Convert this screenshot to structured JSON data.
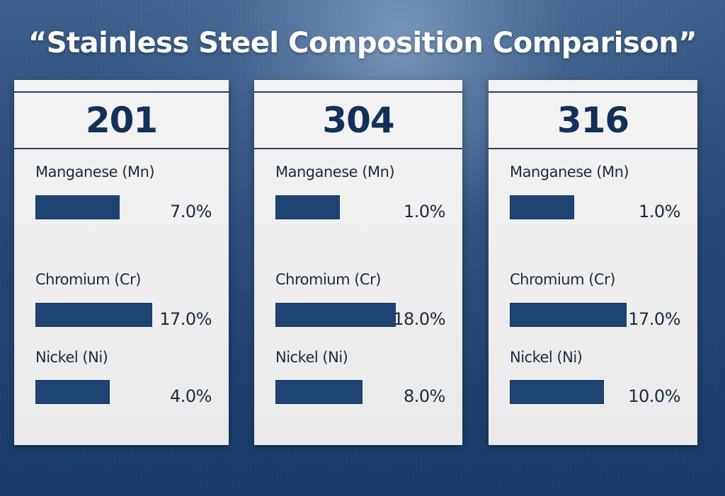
{
  "title": "“Stainless Steel Composition Comparison”",
  "colors": {
    "bar": "#1e4474",
    "grade_text": "#12305a",
    "panel": "#f0f0f0",
    "background": "#24487a"
  },
  "chart_data": {
    "type": "bar",
    "title": "“Stainless Steel Composition Comparison”",
    "categories": [
      "Manganese (Mn)",
      "Chromium (Cr)",
      "Nickel (Ni)"
    ],
    "unit": "%",
    "grades": [
      {
        "name": "201",
        "items": [
          {
            "element": "Manganese (Mn)",
            "value": 7.0,
            "label": "7.0%"
          },
          {
            "element": "Chromium (Cr)",
            "value": 17.0,
            "label": "17.0%"
          },
          {
            "element": "Nickel (Ni)",
            "value": 4.0,
            "label": "4.0%"
          }
        ]
      },
      {
        "name": "304",
        "items": [
          {
            "element": "Manganese (Mn)",
            "value": 1.0,
            "label": "1.0%"
          },
          {
            "element": "Chromium (Cr)",
            "value": 18.0,
            "label": "18.0%"
          },
          {
            "element": "Nickel (Ni)",
            "value": 8.0,
            "label": "8.0%"
          }
        ]
      },
      {
        "name": "316",
        "items": [
          {
            "element": "Manganese (Mn)",
            "value": 1.0,
            "label": "1.0%"
          },
          {
            "element": "Chromium (Cr)",
            "value": 17.0,
            "label": "17.0%"
          },
          {
            "element": "Nickel (Ni)",
            "value": 10.0,
            "label": "10.0%"
          }
        ]
      }
    ]
  }
}
